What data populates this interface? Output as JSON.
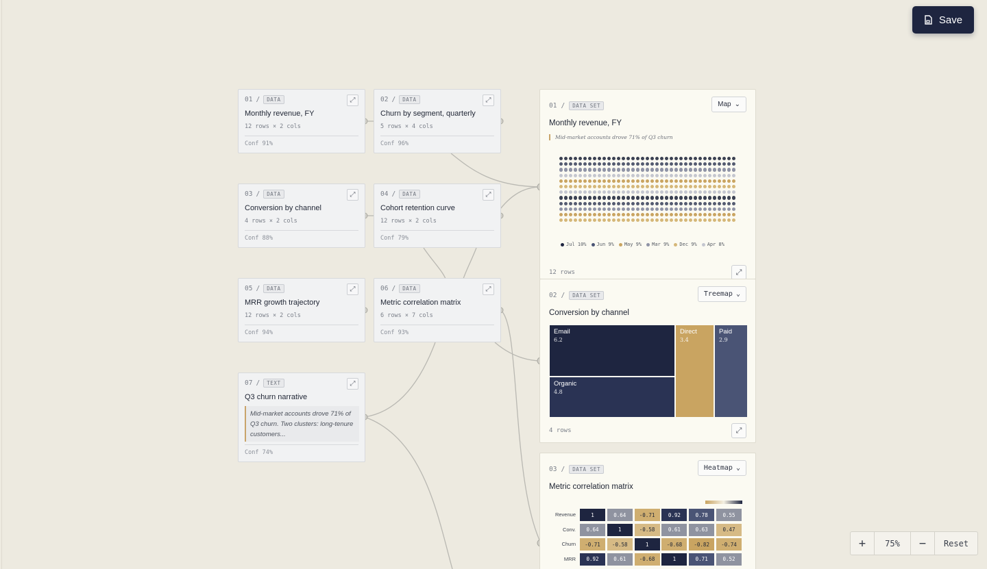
{
  "toolbar": {
    "save_label": "Save",
    "save_icon": "file-icon"
  },
  "nodes": [
    {
      "index": "01",
      "sep": "/",
      "kind": "DATA",
      "title": "Monthly revenue, FY",
      "meta": "12 rows × 2 cols",
      "conf": "Conf 91%"
    },
    {
      "index": "02",
      "sep": "/",
      "kind": "DATA",
      "title": "Churn by segment, quarterly",
      "meta": "5 rows × 4 cols",
      "conf": "Conf 96%"
    },
    {
      "index": "03",
      "sep": "/",
      "kind": "DATA",
      "title": "Conversion by channel",
      "meta": "4 rows × 2 cols",
      "conf": "Conf 88%"
    },
    {
      "index": "04",
      "sep": "/",
      "kind": "DATA",
      "title": "Cohort retention curve",
      "meta": "12 rows × 2 cols",
      "conf": "Conf 79%"
    },
    {
      "index": "05",
      "sep": "/",
      "kind": "DATA",
      "title": "MRR growth trajectory",
      "meta": "12 rows × 2 cols",
      "conf": "Conf 94%"
    },
    {
      "index": "06",
      "sep": "/",
      "kind": "DATA",
      "title": "Metric correlation matrix",
      "meta": "6 rows × 7 cols",
      "conf": "Conf 93%"
    },
    {
      "index": "07",
      "sep": "/",
      "kind": "TEXT",
      "title": "Q3 churn narrative",
      "quote": "Mid-market accounts drove 71% of Q3 churn. Two clusters: long-tenure customers...",
      "conf": "Conf 74%"
    }
  ],
  "panels": {
    "map": {
      "index": "01",
      "sep": "/",
      "kind": "DATA SET",
      "view": "Map",
      "title": "Monthly revenue, FY",
      "quote": "Mid-market accounts drove 71% of Q3 churn",
      "footer": "12 rows",
      "legend": [
        {
          "label": "Jul 10%",
          "color": "#1e2540"
        },
        {
          "label": "Jun 9%",
          "color": "#4a5475"
        },
        {
          "label": "May 9%",
          "color": "#c9a461"
        },
        {
          "label": "Mar 9%",
          "color": "#8f93a6"
        },
        {
          "label": "Dec 9%",
          "color": "#d5b778"
        },
        {
          "label": "Apr 8%",
          "color": "#c4c6cf"
        }
      ],
      "row_colors": [
        "#3b4152",
        "#545b70",
        "#8f93a6",
        "#c4c6cf",
        "#c9a461",
        "#d5b778",
        "#c4c6cf",
        "#3b4152",
        "#545b70",
        "#8f93a6",
        "#c9a461",
        "#d5b778"
      ]
    },
    "treemap": {
      "index": "02",
      "sep": "/",
      "kind": "DATA SET",
      "view": "Treemap",
      "title": "Conversion by channel",
      "footer": "4 rows",
      "tiles": [
        {
          "label": "Email",
          "value": "6.2",
          "color": "#1e2540"
        },
        {
          "label": "Organic",
          "value": "4.8",
          "color": "#2a3354"
        },
        {
          "label": "Direct",
          "value": "3.4",
          "color": "#c9a461"
        },
        {
          "label": "Paid",
          "value": "2.9",
          "color": "#4a5475"
        }
      ]
    },
    "heatmap": {
      "index": "03",
      "sep": "/",
      "kind": "DATA SET",
      "view": "Heatmap",
      "title": "Metric correlation matrix",
      "rows": [
        {
          "label": "Revenue",
          "values": [
            "1",
            "0.64",
            "-0.71",
            "0.92",
            "0.78",
            "0.55"
          ]
        },
        {
          "label": "Conv.",
          "values": [
            "0.64",
            "1",
            "-0.58",
            "0.61",
            "0.63",
            "0.47"
          ]
        },
        {
          "label": "Churn",
          "values": [
            "-0.71",
            "-0.58",
            "1",
            "-0.68",
            "-0.82",
            "-0.74"
          ]
        },
        {
          "label": "MRR",
          "values": [
            "0.92",
            "0.61",
            "-0.68",
            "1",
            "0.71",
            "0.52"
          ]
        }
      ]
    }
  },
  "zoom": {
    "plus": "+",
    "level": "75%",
    "minus": "−",
    "reset": "Reset"
  }
}
